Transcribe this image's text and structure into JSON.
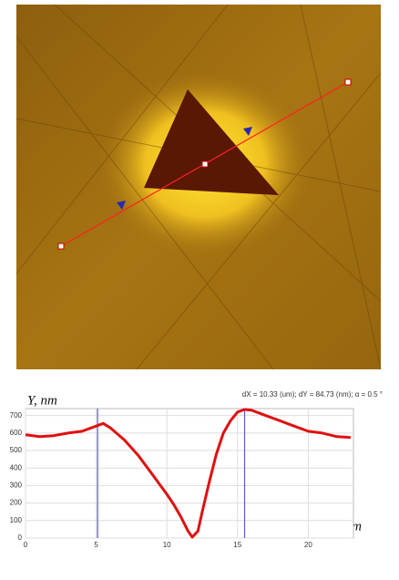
{
  "chart_data": {
    "type": "line",
    "annotation": "dX = 10.33 (um); dY = 84.73 (nm); α = 0.5 °",
    "y_label": "Y, nm",
    "x_label": "X, um",
    "x": [
      0,
      1,
      2,
      3,
      4,
      5,
      5.5,
      6,
      7,
      8,
      9,
      10,
      10.5,
      11,
      11.5,
      11.8,
      12.2,
      12.5,
      13,
      13.5,
      14,
      14.5,
      15,
      15.5,
      16,
      17,
      18,
      19,
      20,
      21,
      22,
      23
    ],
    "values": [
      590,
      580,
      585,
      600,
      610,
      640,
      655,
      630,
      560,
      470,
      360,
      250,
      190,
      120,
      40,
      5,
      40,
      150,
      320,
      480,
      600,
      670,
      720,
      735,
      730,
      700,
      670,
      640,
      610,
      600,
      580,
      575
    ],
    "color": "#e01010",
    "cursors": [
      5.1,
      15.5
    ],
    "cursor_color": "#5b5bd6",
    "xlim": [
      0,
      23.2
    ],
    "xticks": [
      0,
      5,
      10,
      15,
      20
    ],
    "ylim": [
      0,
      740
    ],
    "yticks": [
      0,
      100,
      200,
      300,
      400,
      500,
      600,
      700
    ],
    "grid": true
  }
}
